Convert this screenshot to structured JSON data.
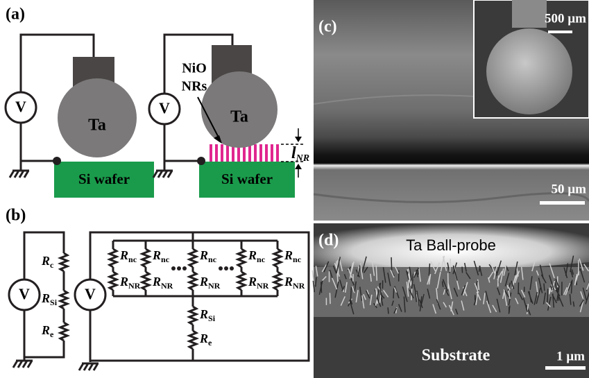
{
  "panels": {
    "a": {
      "label": "(a)",
      "left": {
        "meter": "V",
        "probe": "Ta",
        "wafer": "Si wafer"
      },
      "right": {
        "meter": "V",
        "probe": "Ta",
        "nanorods": [
          "NiO",
          "NRs"
        ],
        "length": {
          "main": "l",
          "sub": "NR"
        },
        "wafer": "Si wafer"
      }
    },
    "b": {
      "label": "(b)",
      "left": {
        "meter": "V",
        "resistors": [
          {
            "main": "R",
            "sub": "c"
          },
          {
            "main": "R",
            "sub": "Si"
          },
          {
            "main": "R",
            "sub": "e"
          }
        ]
      },
      "right": {
        "meter": "V",
        "branches": [
          {
            "upper": {
              "main": "R",
              "sub": "nc"
            },
            "lower": {
              "main": "R",
              "sub": "NR"
            }
          },
          {
            "upper": {
              "main": "R",
              "sub": "nc"
            },
            "lower": {
              "main": "R",
              "sub": "NR"
            }
          },
          {
            "upper": {
              "main": "R",
              "sub": "nc"
            },
            "lower": {
              "main": "R",
              "sub": "NR"
            }
          },
          {
            "upper": {
              "main": "R",
              "sub": "nc"
            },
            "lower": {
              "main": "R",
              "sub": "NR"
            }
          },
          {
            "upper": {
              "main": "R",
              "sub": "nc"
            },
            "lower": {
              "main": "R",
              "sub": "NR"
            }
          }
        ],
        "series": [
          {
            "main": "R",
            "sub": "Si"
          },
          {
            "main": "R",
            "sub": "e"
          }
        ]
      }
    },
    "c": {
      "label": "(c)",
      "inset_scale": "500 µm",
      "scale": "50 µm"
    },
    "d": {
      "label": "(d)",
      "probe": "Ta Ball-probe",
      "substrate": "Substrate",
      "scale": "1 µm"
    }
  }
}
